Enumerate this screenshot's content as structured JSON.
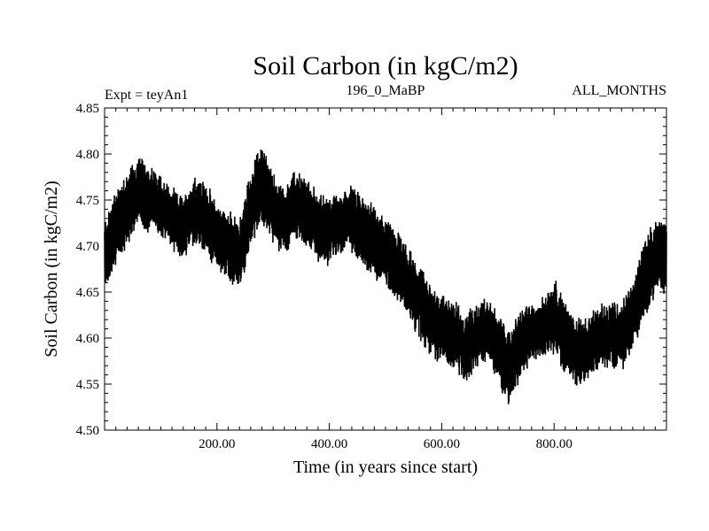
{
  "chart_data": {
    "type": "line",
    "title": "Soil Carbon (in kgC/m2)",
    "subtitle_left": "Expt = teyAn1",
    "subtitle_center": "196_0_MaBP",
    "subtitle_right": "ALL_MONTHS",
    "xlabel": "Time (in years since start)",
    "ylabel": "Soil Carbon (in kgC/m2)",
    "xlim": [
      0,
      1000
    ],
    "ylim": [
      4.5,
      4.85
    ],
    "x_ticks": [
      200,
      400,
      600,
      800
    ],
    "x_tick_labels": [
      "200.00",
      "400.00",
      "600.00",
      "800.00"
    ],
    "y_ticks": [
      4.5,
      4.55,
      4.6,
      4.65,
      4.7,
      4.75,
      4.8,
      4.85
    ],
    "y_tick_labels": [
      "4.50",
      "4.55",
      "4.60",
      "4.65",
      "4.70",
      "4.75",
      "4.80",
      "4.85"
    ],
    "line_color": "#000000",
    "series": [
      {
        "name": "soil_carbon",
        "x": [
          0,
          20,
          40,
          60,
          80,
          100,
          120,
          140,
          160,
          180,
          200,
          220,
          240,
          260,
          280,
          300,
          320,
          340,
          360,
          380,
          400,
          420,
          440,
          460,
          480,
          500,
          520,
          540,
          560,
          580,
          600,
          620,
          640,
          660,
          680,
          700,
          720,
          740,
          760,
          780,
          800,
          820,
          840,
          860,
          880,
          900,
          920,
          940,
          960,
          980,
          1000
        ],
        "center": [
          4.69,
          4.72,
          4.74,
          4.76,
          4.75,
          4.745,
          4.73,
          4.72,
          4.74,
          4.73,
          4.71,
          4.7,
          4.69,
          4.74,
          4.77,
          4.74,
          4.73,
          4.745,
          4.735,
          4.72,
          4.715,
          4.725,
          4.73,
          4.715,
          4.705,
          4.695,
          4.68,
          4.66,
          4.64,
          4.62,
          4.61,
          4.605,
          4.59,
          4.6,
          4.61,
          4.59,
          4.565,
          4.595,
          4.605,
          4.61,
          4.625,
          4.6,
          4.585,
          4.59,
          4.6,
          4.605,
          4.6,
          4.625,
          4.665,
          4.685,
          4.69
        ],
        "amplitude": [
          0.035,
          0.04,
          0.04,
          0.035,
          0.035,
          0.03,
          0.03,
          0.03,
          0.035,
          0.035,
          0.035,
          0.035,
          0.035,
          0.04,
          0.04,
          0.035,
          0.035,
          0.035,
          0.035,
          0.035,
          0.035,
          0.03,
          0.035,
          0.035,
          0.035,
          0.035,
          0.035,
          0.035,
          0.035,
          0.035,
          0.035,
          0.035,
          0.035,
          0.035,
          0.03,
          0.035,
          0.04,
          0.035,
          0.03,
          0.03,
          0.04,
          0.035,
          0.035,
          0.03,
          0.03,
          0.035,
          0.035,
          0.035,
          0.04,
          0.04,
          0.04
        ]
      }
    ]
  }
}
